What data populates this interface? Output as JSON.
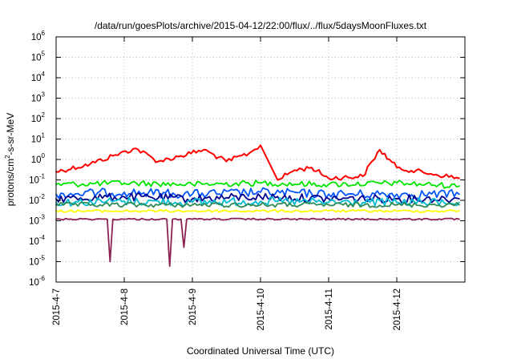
{
  "chart_data": {
    "type": "line",
    "title": "/data/run/goesPlots/archive/2015-04-12/22:00/flux/../flux/5daysMoonFluxes.txt",
    "xlabel": "Coordinated Universal Time (UTC)",
    "ylabel": {
      "base": "protons/cm",
      "sup": "2",
      "rest": "-s-sr-MeV"
    },
    "x_scale": "date",
    "xlim": [
      "2015-04-07",
      "2015-04-13"
    ],
    "x_ticks": [
      "2015-4-7",
      "2015-4-8",
      "2015-4-9",
      "2015-4-10",
      "2015-4-11",
      "2015-4-12"
    ],
    "y_scale": "log",
    "ylim": [
      1e-06,
      1000000
    ],
    "y_ticks": [
      {
        "base": "10",
        "exp": "-6"
      },
      {
        "base": "10",
        "exp": "-5"
      },
      {
        "base": "10",
        "exp": "-4"
      },
      {
        "base": "10",
        "exp": "-3"
      },
      {
        "base": "10",
        "exp": "-2"
      },
      {
        "base": "10",
        "exp": "-1"
      },
      {
        "base": "10",
        "exp": "0"
      },
      {
        "base": "10",
        "exp": "1"
      },
      {
        "base": "10",
        "exp": "2"
      },
      {
        "base": "10",
        "exp": "3"
      },
      {
        "base": "10",
        "exp": "4"
      },
      {
        "base": "10",
        "exp": "5"
      },
      {
        "base": "10",
        "exp": "6"
      }
    ],
    "grid": true,
    "legend": "none",
    "series": [
      {
        "color": "#ff0000",
        "x": [
          "2015-04-07",
          "2015-04-07T12:00",
          "2015-04-07T20:00",
          "2015-04-08T04:00",
          "2015-04-08T12:00",
          "2015-04-08T20:00",
          "2015-04-09T04:00",
          "2015-04-09T12:00",
          "2015-04-09T20:00",
          "2015-04-10T00:00",
          "2015-04-10T06:00",
          "2015-04-10T12:00",
          "2015-04-10T18:00",
          "2015-04-11T00:00",
          "2015-04-11T12:00",
          "2015-04-11T18:00",
          "2015-04-12T00:00",
          "2015-04-12T12:00",
          "2015-04-12T22:00"
        ],
        "values": [
          0.25,
          0.6,
          1.5,
          3.5,
          0.8,
          1.5,
          3.0,
          0.8,
          2.0,
          5.0,
          0.1,
          0.3,
          0.4,
          0.12,
          0.15,
          3.0,
          0.4,
          0.2,
          0.12
        ]
      },
      {
        "color": "#00e600",
        "x": [
          "2015-04-07",
          "2015-04-08",
          "2015-04-09",
          "2015-04-10",
          "2015-04-11",
          "2015-04-12",
          "2015-04-12T22:00"
        ],
        "values": [
          0.06,
          0.07,
          0.06,
          0.07,
          0.06,
          0.07,
          0.05
        ]
      },
      {
        "color": "#0055ff",
        "x": [
          "2015-04-07",
          "2015-04-08",
          "2015-04-09",
          "2015-04-10",
          "2015-04-11",
          "2015-04-12",
          "2015-04-12T22:00"
        ],
        "values": [
          0.02,
          0.025,
          0.02,
          0.025,
          0.02,
          0.02,
          0.02
        ]
      },
      {
        "color": "#00008b",
        "x": [
          "2015-04-07",
          "2015-04-08",
          "2015-04-09",
          "2015-04-10",
          "2015-04-11",
          "2015-04-12",
          "2015-04-12T22:00"
        ],
        "values": [
          0.012,
          0.015,
          0.012,
          0.015,
          0.012,
          0.012,
          0.012
        ]
      },
      {
        "color": "#00bcd4",
        "x": [
          "2015-04-07",
          "2015-04-08",
          "2015-04-09",
          "2015-04-10",
          "2015-04-11",
          "2015-04-12",
          "2015-04-12T22:00"
        ],
        "values": [
          0.008,
          0.009,
          0.008,
          0.009,
          0.008,
          0.008,
          0.008
        ]
      },
      {
        "color": "#2e8b57",
        "x": [
          "2015-04-07",
          "2015-04-08",
          "2015-04-09",
          "2015-04-10",
          "2015-04-11",
          "2015-04-12",
          "2015-04-12T22:00"
        ],
        "values": [
          0.006,
          0.006,
          0.006,
          0.006,
          0.006,
          0.006,
          0.006
        ]
      },
      {
        "color": "#ffff00",
        "x": [
          "2015-04-07",
          "2015-04-08",
          "2015-04-09",
          "2015-04-10",
          "2015-04-11",
          "2015-04-12",
          "2015-04-12T22:00"
        ],
        "values": [
          0.003,
          0.003,
          0.003,
          0.003,
          0.003,
          0.003,
          0.003
        ]
      },
      {
        "color": "#8b2252",
        "x": [
          "2015-04-07",
          "2015-04-07T18:00",
          "2015-04-07T19:00",
          "2015-04-07T20:00",
          "2015-04-08",
          "2015-04-08T15:00",
          "2015-04-08T16:00",
          "2015-04-08T17:00",
          "2015-04-08T20:00",
          "2015-04-08T21:00",
          "2015-04-08T22:00",
          "2015-04-09",
          "2015-04-10",
          "2015-04-11",
          "2015-04-12",
          "2015-04-12T22:00"
        ],
        "values": [
          0.0012,
          0.0012,
          1e-05,
          0.0012,
          0.0012,
          0.0012,
          6e-06,
          0.0012,
          0.0012,
          5e-05,
          0.0012,
          0.0012,
          0.0012,
          0.0012,
          0.0012,
          0.0012
        ]
      }
    ]
  }
}
